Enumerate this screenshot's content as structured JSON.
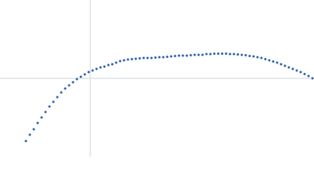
{
  "chart_data": {
    "type": "scatter",
    "color": "#2f62ad",
    "xlim": [
      -115,
      285
    ],
    "ylim": [
      -100,
      100
    ],
    "x": [
      -82,
      -77,
      -72,
      -67,
      -62,
      -57,
      -52,
      -47,
      -42,
      -37,
      -32,
      -27,
      -22,
      -17,
      -12,
      -7,
      -2,
      3,
      8,
      13,
      18,
      23,
      28,
      33,
      38,
      43,
      48,
      53,
      58,
      63,
      68,
      73,
      78,
      83,
      88,
      93,
      98,
      103,
      108,
      113,
      118,
      123,
      128,
      133,
      138,
      143,
      148,
      153,
      158,
      163,
      168,
      173,
      178,
      183,
      188,
      193,
      198,
      203,
      208,
      213,
      218,
      223,
      228,
      233,
      238,
      243,
      248,
      253,
      258,
      263,
      268,
      273,
      278,
      283
    ],
    "values": [
      -80,
      -72,
      -65,
      -57,
      -50,
      -43,
      -36,
      -30,
      -24,
      -18,
      -13,
      -9,
      -5,
      -1,
      2,
      5,
      8,
      10,
      12,
      14,
      15,
      17,
      18,
      20,
      22,
      23,
      24,
      24.5,
      25,
      25.5,
      26,
      26,
      26,
      26.5,
      27,
      27,
      27.5,
      28,
      28.5,
      29,
      29,
      29,
      29.5,
      30,
      30,
      30,
      31,
      31,
      31.5,
      31.5,
      31.5,
      31.5,
      31,
      31,
      30.5,
      30,
      29.5,
      28.5,
      28,
      27,
      26,
      24.5,
      23,
      21.5,
      20,
      18,
      16,
      14,
      12,
      10,
      8,
      5.5,
      3,
      0
    ]
  }
}
